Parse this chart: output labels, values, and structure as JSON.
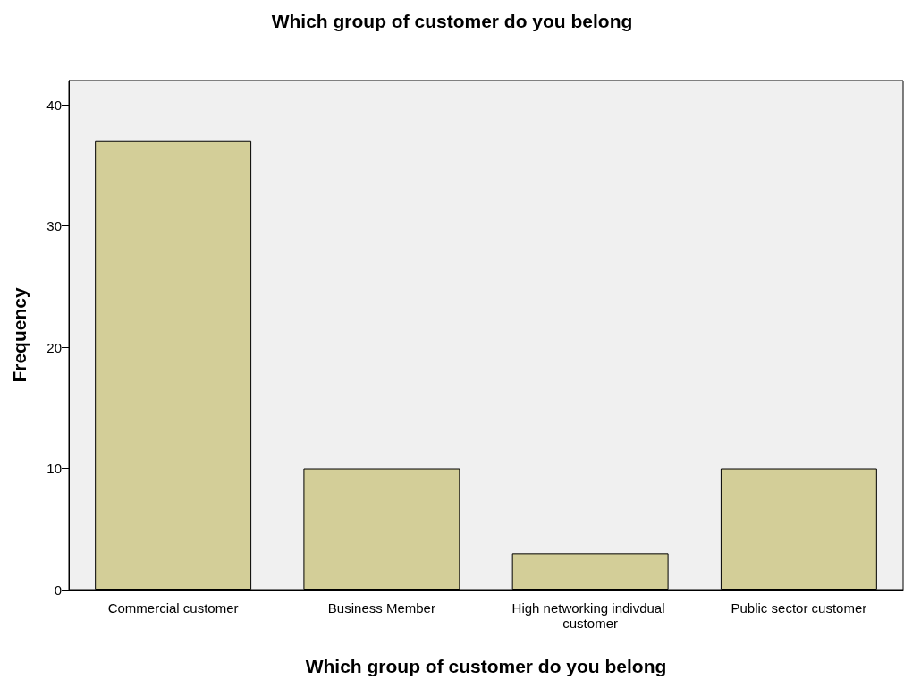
{
  "chart_data": {
    "type": "bar",
    "title": "Which group of customer do you belong",
    "xlabel": "Which group of customer do you belong",
    "ylabel": "Frequency",
    "categories": [
      "Commercial customer",
      "Business Member",
      "High networking indivdual customer",
      "Public sector customer"
    ],
    "values": [
      37,
      10,
      3,
      10
    ],
    "color": "#d3ce98",
    "ylim": [
      0,
      42
    ],
    "yticks": [
      0,
      10,
      20,
      30,
      40
    ],
    "grid": false
  }
}
